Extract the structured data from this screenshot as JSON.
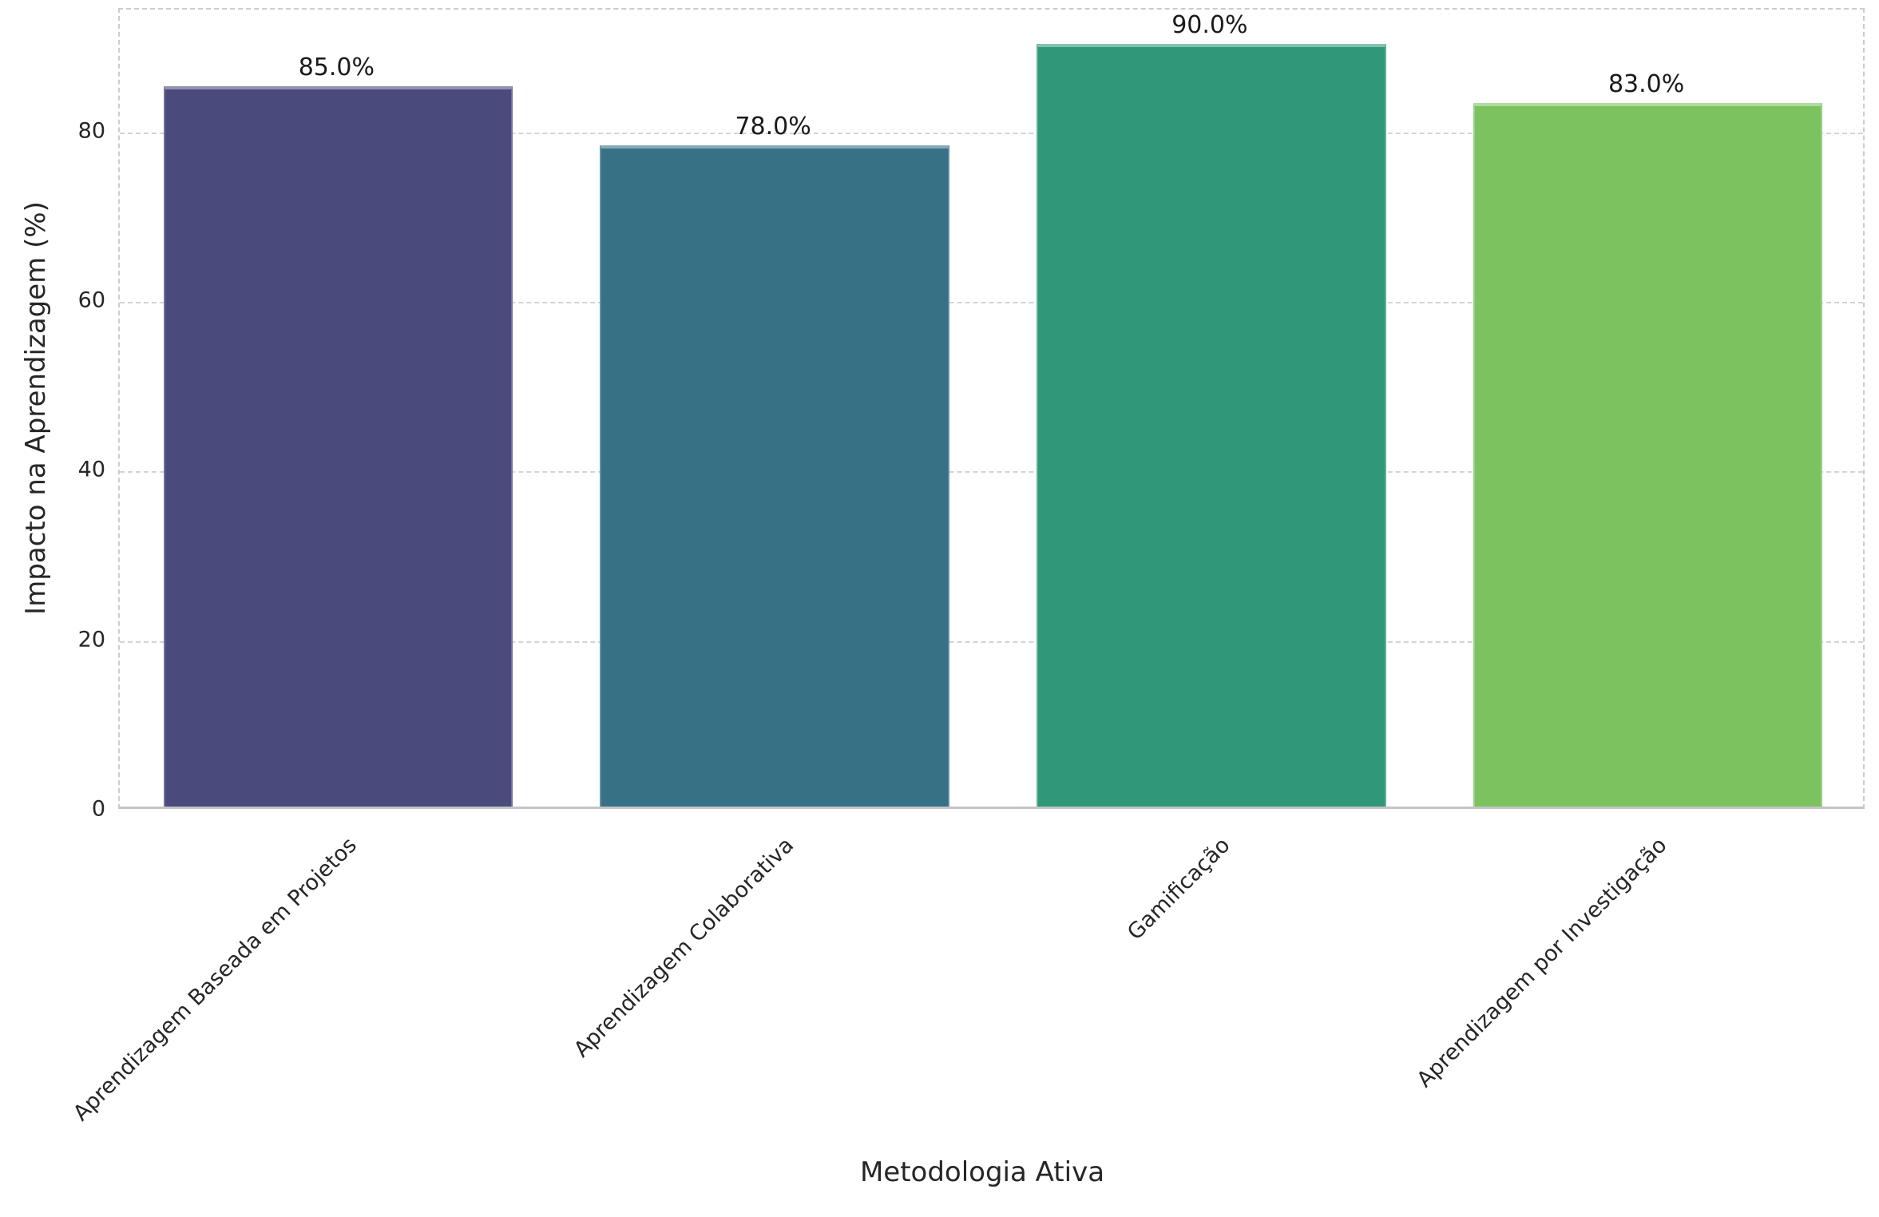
{
  "chart_data": {
    "type": "bar",
    "title": "",
    "xlabel": "Metodologia Ativa",
    "ylabel": "Impacto na Aprendizagem (%)",
    "categories": [
      "Aprendizagem Baseada em Projetos",
      "Aprendizagem Colaborativa",
      "Gamificação",
      "Aprendizagem por Investigação"
    ],
    "values": [
      85.0,
      78.0,
      90.0,
      83.0
    ],
    "value_labels": [
      "85.0%",
      "78.0%",
      "90.0%",
      "83.0%"
    ],
    "bar_colors": [
      "#4a4a7d",
      "#367186",
      "#2f9878",
      "#7cc35f"
    ],
    "ylim": [
      0,
      94.5
    ],
    "yticks": [
      0,
      20,
      40,
      60,
      80
    ],
    "grid": true,
    "grid_style": "dashed",
    "legend_position": "none",
    "bar_width_fraction": 0.8
  },
  "colors": {
    "grid": "#d4d4d4",
    "spine": "#cccccc",
    "text": "#262626",
    "background": "#ffffff"
  }
}
